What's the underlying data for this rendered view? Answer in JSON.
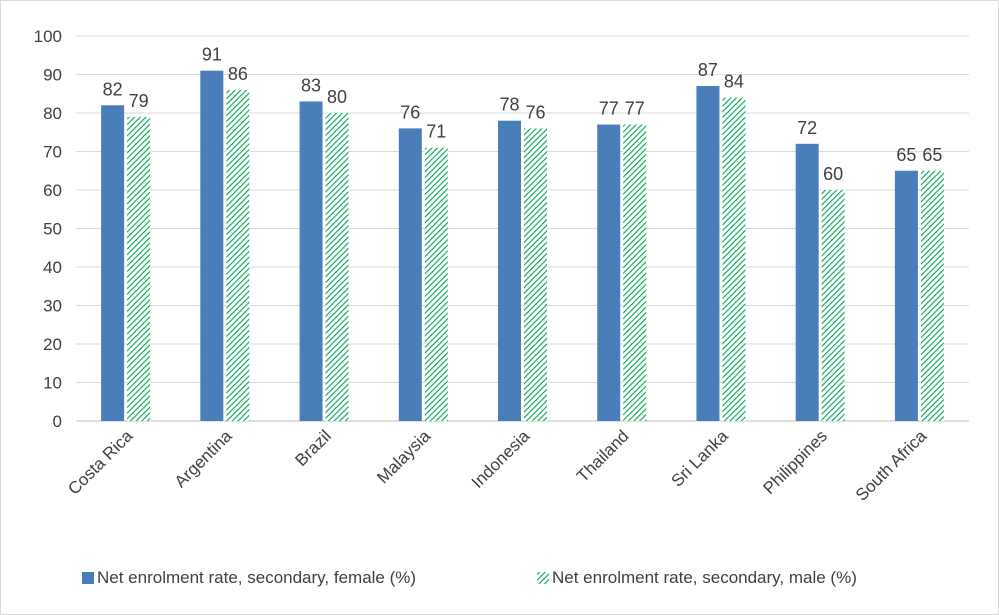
{
  "chart_data": {
    "type": "bar",
    "title": "",
    "xlabel": "",
    "ylabel": "",
    "ylim": [
      0,
      100
    ],
    "yticks": [
      0,
      10,
      20,
      30,
      40,
      50,
      60,
      70,
      80,
      90,
      100
    ],
    "grid": true,
    "legend_position": "bottom",
    "categories": [
      "Costa Rica",
      "Argentina",
      "Brazil",
      "Malaysia",
      "Indonesia",
      "Thailand",
      "Sri Lanka",
      "Philippines",
      "South Africa"
    ],
    "series": [
      {
        "name": "Net enrolment rate, secondary, female (%)",
        "values": [
          82,
          91,
          83,
          76,
          78,
          77,
          87,
          72,
          65
        ],
        "color": "#4a7ebb",
        "pattern": "solid"
      },
      {
        "name": "Net enrolment rate, secondary, male (%)",
        "values": [
          79,
          86,
          80,
          71,
          76,
          77,
          84,
          60,
          65
        ],
        "color": "#00a651",
        "pattern": "diagonal-hatch"
      }
    ]
  }
}
